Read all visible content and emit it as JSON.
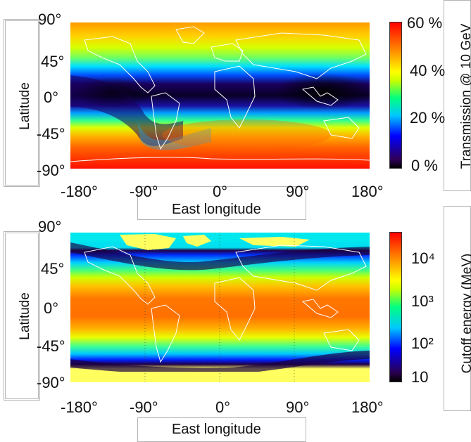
{
  "panels": [
    {
      "ylabel": "Latitude",
      "xlabel": "East longitude",
      "x_ticks": [
        "-180°",
        "-90°",
        "0°",
        "90°",
        "180°"
      ],
      "y_ticks": [
        "90°",
        "45°",
        "0°",
        "-45°",
        "-90°"
      ],
      "colorbar_label": "Transmission @ 10 GeV",
      "colorbar_ticks": [
        "60 %",
        "40 %",
        "20 %",
        "0 %"
      ]
    },
    {
      "ylabel": "Latitude",
      "xlabel": "East longitude",
      "x_ticks": [
        "-180°",
        "-90°",
        "0°",
        "90°",
        "180°"
      ],
      "y_ticks": [
        "90°",
        "45°",
        "0°",
        "-45°",
        "-90°"
      ],
      "colorbar_label": "Cutoff energy (MeV)",
      "colorbar_ticks": [
        "10⁴",
        "10³",
        "10²",
        "10"
      ]
    }
  ],
  "colors": {
    "jet_scale": [
      "#000000",
      "#2a0050",
      "#0000ff",
      "#00c8ff",
      "#00ff80",
      "#c8ff00",
      "#ffff00",
      "#ff9000",
      "#ff0000"
    ],
    "cap_color": "#ffff60",
    "cap_cyan": "#00e8ee",
    "continent_line": "#ffffff"
  },
  "chart_data": [
    {
      "type": "heatmap",
      "title": "",
      "xlabel": "East longitude",
      "ylabel": "Latitude",
      "xlim": [
        -180,
        180
      ],
      "ylim": [
        -90,
        90
      ],
      "colorbar": {
        "label": "Transmission @ 10 GeV",
        "range": [
          0,
          60
        ],
        "unit": "%",
        "ticks": [
          0,
          20,
          40,
          60
        ]
      },
      "description_bands": [
        {
          "lat_range": [
            60,
            90
          ],
          "value_pct": 58
        },
        {
          "lat_range": [
            30,
            60
          ],
          "value_pct": 40
        },
        {
          "lat_range": [
            -20,
            25
          ],
          "value_pct": 8
        },
        {
          "lat_range": [
            -60,
            -30
          ],
          "value_pct": 45
        },
        {
          "lat_range": [
            -90,
            -60
          ],
          "value_pct": 60
        }
      ]
    },
    {
      "type": "heatmap",
      "title": "",
      "xlabel": "East longitude",
      "ylabel": "Latitude",
      "xlim": [
        -180,
        180
      ],
      "ylim": [
        -90,
        90
      ],
      "colorbar": {
        "label": "Cutoff energy (MeV)",
        "scale": "log",
        "range": [
          10,
          50000
        ],
        "ticks": [
          10,
          100,
          1000,
          10000
        ]
      },
      "description_bands": [
        {
          "lat_range": [
            -30,
            30
          ],
          "value_mev": 15000
        },
        {
          "lat_range": [
            40,
            55
          ],
          "value_mev": 1000
        },
        {
          "lat_range": [
            60,
            70
          ],
          "value_mev": 20
        },
        {
          "lat_range": [
            -60,
            -45
          ],
          "value_mev": 1000
        },
        {
          "lat_range": [
            -75,
            -65
          ],
          "value_mev": 20
        }
      ]
    }
  ]
}
